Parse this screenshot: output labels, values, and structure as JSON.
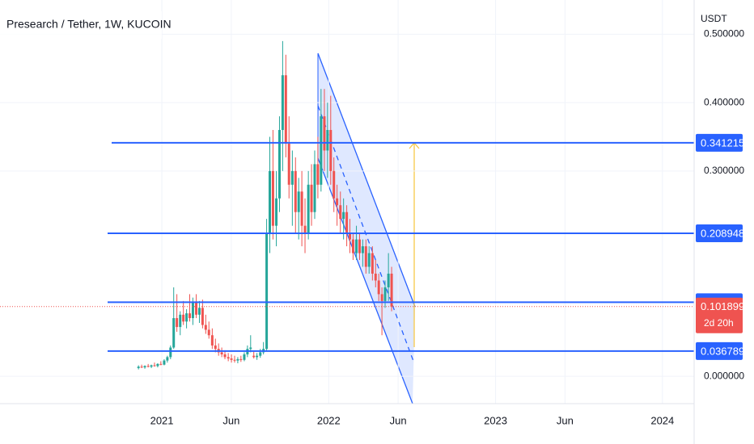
{
  "chart_data": {
    "type": "candlestick",
    "title": "Presearch / Tether, 1W, KUCOIN",
    "currency": "USDT",
    "up_color": "#26a69a",
    "down_color": "#ef5350",
    "xlim": [
      2020.03,
      2024.19
    ],
    "xticks": [
      2021,
      {
        "value": 2021.416,
        "label": "Jun"
      },
      2022,
      {
        "value": 2022.416,
        "label": "Jun"
      },
      2023,
      {
        "value": 2023.416,
        "label": "Jun"
      },
      2024
    ],
    "ylim": [
      -0.04,
      0.55
    ],
    "yticks": [
      {
        "value": 0,
        "label": "0.000000"
      },
      {
        "value": 0.3,
        "label": "0.300000"
      },
      {
        "value": 0.4,
        "label": "0.400000"
      },
      {
        "value": 0.5,
        "label": "0.500000"
      }
    ],
    "grid": true,
    "x": [
      2020.86,
      2020.879,
      2020.898,
      2020.918,
      2020.937,
      2020.956,
      2020.975,
      2020.994,
      2021.014,
      2021.033,
      2021.052,
      2021.071,
      2021.09,
      2021.11,
      2021.129,
      2021.148,
      2021.167,
      2021.186,
      2021.206,
      2021.225,
      2021.244,
      2021.263,
      2021.282,
      2021.302,
      2021.321,
      2021.34,
      2021.359,
      2021.378,
      2021.398,
      2021.417,
      2021.436,
      2021.455,
      2021.474,
      2021.494,
      2021.513,
      2021.532,
      2021.551,
      2021.57,
      2021.59,
      2021.609,
      2021.628,
      2021.647,
      2021.666,
      2021.686,
      2021.705,
      2021.724,
      2021.743,
      2021.762,
      2021.782,
      2021.801,
      2021.82,
      2021.839,
      2021.858,
      2021.878,
      2021.897,
      2021.916,
      2021.935,
      2021.954,
      2021.974,
      2021.993,
      2022.012,
      2022.031,
      2022.05,
      2022.07,
      2022.089,
      2022.108,
      2022.127,
      2022.146,
      2022.166,
      2022.185,
      2022.204,
      2022.223,
      2022.242,
      2022.262,
      2022.281,
      2022.3,
      2022.319,
      2022.338,
      2022.358,
      2022.377
    ],
    "candles": [
      [
        0.012,
        0.016,
        0.01,
        0.014
      ],
      [
        0.014,
        0.017,
        0.012,
        0.013
      ],
      [
        0.013,
        0.016,
        0.011,
        0.015
      ],
      [
        0.015,
        0.018,
        0.013,
        0.014
      ],
      [
        0.014,
        0.017,
        0.012,
        0.016
      ],
      [
        0.016,
        0.02,
        0.014,
        0.015
      ],
      [
        0.015,
        0.019,
        0.013,
        0.018
      ],
      [
        0.018,
        0.022,
        0.016,
        0.017
      ],
      [
        0.017,
        0.025,
        0.016,
        0.023
      ],
      [
        0.023,
        0.03,
        0.02,
        0.028
      ],
      [
        0.028,
        0.045,
        0.025,
        0.042
      ],
      [
        0.042,
        0.13,
        0.04,
        0.085
      ],
      [
        0.085,
        0.12,
        0.065,
        0.072
      ],
      [
        0.072,
        0.095,
        0.06,
        0.09
      ],
      [
        0.09,
        0.11,
        0.075,
        0.08
      ],
      [
        0.08,
        0.098,
        0.07,
        0.092
      ],
      [
        0.092,
        0.12,
        0.08,
        0.085
      ],
      [
        0.085,
        0.115,
        0.075,
        0.108
      ],
      [
        0.108,
        0.12,
        0.085,
        0.09
      ],
      [
        0.09,
        0.11,
        0.078,
        0.1
      ],
      [
        0.1,
        0.112,
        0.07,
        0.075
      ],
      [
        0.075,
        0.09,
        0.062,
        0.068
      ],
      [
        0.068,
        0.08,
        0.055,
        0.06
      ],
      [
        0.06,
        0.07,
        0.04,
        0.045
      ],
      [
        0.045,
        0.055,
        0.035,
        0.04
      ],
      [
        0.04,
        0.048,
        0.03,
        0.035
      ],
      [
        0.035,
        0.042,
        0.028,
        0.032
      ],
      [
        0.032,
        0.038,
        0.025,
        0.028
      ],
      [
        0.028,
        0.034,
        0.022,
        0.026
      ],
      [
        0.026,
        0.032,
        0.02,
        0.024
      ],
      [
        0.024,
        0.03,
        0.02,
        0.023
      ],
      [
        0.023,
        0.028,
        0.019,
        0.025
      ],
      [
        0.025,
        0.03,
        0.021,
        0.024
      ],
      [
        0.024,
        0.035,
        0.022,
        0.032
      ],
      [
        0.032,
        0.045,
        0.028,
        0.04
      ],
      [
        0.04,
        0.06,
        0.035,
        0.042
      ],
      [
        0.03,
        0.036,
        0.026,
        0.028
      ],
      [
        0.028,
        0.034,
        0.024,
        0.03
      ],
      [
        0.03,
        0.04,
        0.027,
        0.035
      ],
      [
        0.035,
        0.05,
        0.032,
        0.04
      ],
      [
        0.04,
        0.23,
        0.038,
        0.21
      ],
      [
        0.21,
        0.35,
        0.18,
        0.3
      ],
      [
        0.3,
        0.36,
        0.2,
        0.22
      ],
      [
        0.22,
        0.3,
        0.19,
        0.26
      ],
      [
        0.26,
        0.38,
        0.24,
        0.36
      ],
      [
        0.36,
        0.49,
        0.3,
        0.44
      ],
      [
        0.44,
        0.47,
        0.32,
        0.34
      ],
      [
        0.34,
        0.38,
        0.26,
        0.28
      ],
      [
        0.28,
        0.33,
        0.22,
        0.3
      ],
      [
        0.3,
        0.32,
        0.21,
        0.24
      ],
      [
        0.24,
        0.29,
        0.2,
        0.27
      ],
      [
        0.27,
        0.3,
        0.19,
        0.22
      ],
      [
        0.22,
        0.26,
        0.18,
        0.21
      ],
      [
        0.21,
        0.3,
        0.2,
        0.28
      ],
      [
        0.28,
        0.31,
        0.22,
        0.24
      ],
      [
        0.24,
        0.33,
        0.23,
        0.31
      ],
      [
        0.31,
        0.35,
        0.26,
        0.28
      ],
      [
        0.28,
        0.42,
        0.27,
        0.38
      ],
      [
        0.38,
        0.42,
        0.3,
        0.33
      ],
      [
        0.33,
        0.4,
        0.29,
        0.36
      ],
      [
        0.36,
        0.41,
        0.28,
        0.3
      ],
      [
        0.3,
        0.32,
        0.24,
        0.26
      ],
      [
        0.26,
        0.28,
        0.22,
        0.25
      ],
      [
        0.25,
        0.27,
        0.21,
        0.23
      ],
      [
        0.23,
        0.26,
        0.2,
        0.24
      ],
      [
        0.24,
        0.25,
        0.19,
        0.21
      ],
      [
        0.21,
        0.23,
        0.18,
        0.2
      ],
      [
        0.2,
        0.21,
        0.17,
        0.18
      ],
      [
        0.18,
        0.22,
        0.17,
        0.2
      ],
      [
        0.2,
        0.21,
        0.17,
        0.18
      ],
      [
        0.18,
        0.2,
        0.16,
        0.19
      ],
      [
        0.19,
        0.2,
        0.15,
        0.16
      ],
      [
        0.16,
        0.19,
        0.15,
        0.18
      ],
      [
        0.18,
        0.19,
        0.14,
        0.15
      ],
      [
        0.15,
        0.17,
        0.13,
        0.14
      ],
      [
        0.14,
        0.15,
        0.11,
        0.12
      ],
      [
        0.12,
        0.13,
        0.06,
        0.11
      ],
      [
        0.11,
        0.14,
        0.1,
        0.13
      ],
      [
        0.13,
        0.18,
        0.11,
        0.15
      ],
      [
        0.15,
        0.16,
        0.095,
        0.101899
      ]
    ],
    "levels": [
      0.341215,
      0.208948,
      0.108172,
      0.036789
    ],
    "level_color": "#2962ff",
    "last_price": 0.101899,
    "countdown": "2d 20h"
  }
}
